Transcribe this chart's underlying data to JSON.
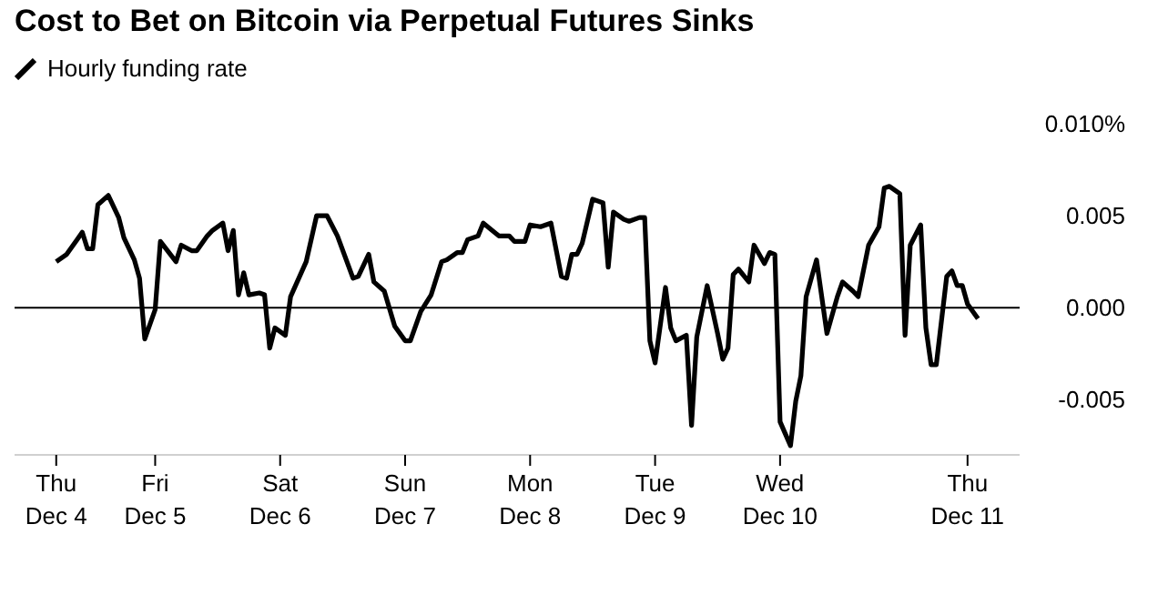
{
  "chart_data": {
    "type": "line",
    "title": "Cost to Bet on Bitcoin via Perpetual Futures Sinks",
    "x": [
      "--12-04T05:00",
      "--12-04T07:00",
      "--12-04T09:00",
      "--12-04T10:00",
      "--12-04T11:00",
      "--12-04T12:00",
      "--12-04T13:00",
      "--12-04T15:00",
      "--12-04T17:00",
      "--12-04T18:00",
      "--12-04T20:00",
      "--12-04T21:00",
      "--12-04T22:00",
      "--12-05T00:00",
      "--12-05T01:00",
      "--12-05T04:00",
      "--12-05T05:00",
      "--12-05T07:00",
      "--12-05T08:00",
      "--12-05T10:00",
      "--12-05T11:00",
      "--12-05T13:00",
      "--12-05T14:00",
      "--12-05T15:00",
      "--12-05T16:00",
      "--12-05T17:00",
      "--12-05T18:00",
      "--12-05T20:00",
      "--12-05T21:00",
      "--12-05T22:00",
      "--12-05T23:00",
      "--12-06T01:00",
      "--12-06T02:00",
      "--12-06T05:00",
      "--12-06T07:00",
      "--12-06T09:00",
      "--12-06T11:00",
      "--12-06T14:00",
      "--12-06T15:00",
      "--12-06T17:00",
      "--12-06T18:00",
      "--12-06T20:00",
      "--12-06T22:00",
      "--12-07T00:00",
      "--12-07T01:00",
      "--12-07T03:00",
      "--12-07T05:00",
      "--12-07T07:00",
      "--12-07T08:00",
      "--12-07T10:00",
      "--12-07T11:00",
      "--12-07T12:00",
      "--12-07T14:00",
      "--12-07T15:00",
      "--12-07T18:00",
      "--12-07T20:00",
      "--12-07T21:00",
      "--12-07T23:00",
      "--12-08T00:00",
      "--12-08T02:00",
      "--12-08T04:00",
      "--12-08T06:00",
      "--12-08T07:00",
      "--12-08T08:00",
      "--12-08T09:00",
      "--12-08T10:00",
      "--12-08T12:00",
      "--12-08T14:00",
      "--12-08T15:00",
      "--12-08T16:00",
      "--12-08T18:00",
      "--12-08T19:00",
      "--12-08T21:00",
      "--12-08T22:00",
      "--12-08T23:00",
      "--12-09T00:00",
      "--12-09T02:00",
      "--12-09T03:00",
      "--12-09T04:00",
      "--12-09T06:00",
      "--12-09T07:00",
      "--12-09T08:00",
      "--12-09T10:00",
      "--12-09T12:00",
      "--12-09T13:00",
      "--12-09T14:00",
      "--12-09T15:00",
      "--12-09T16:00",
      "--12-09T18:00",
      "--12-09T19:00",
      "--12-09T21:00",
      "--12-09T22:00",
      "--12-09T23:00",
      "--12-10T00:00",
      "--12-10T02:00",
      "--12-10T03:00",
      "--12-10T04:00",
      "--12-10T05:00",
      "--12-10T07:00",
      "--12-10T09:00",
      "--12-10T11:00",
      "--12-10T12:00",
      "--12-10T14:00",
      "--12-10T15:00",
      "--12-10T17:00",
      "--12-10T19:00",
      "--12-10T20:00",
      "--12-10T21:00",
      "--12-10T23:00",
      "--12-11T00:00",
      "--12-11T01:00",
      "--12-11T03:00",
      "--12-11T04:00",
      "--12-11T05:00",
      "--12-11T06:00",
      "--12-11T08:00",
      "--12-11T09:00",
      "--12-11T10:00",
      "--12-11T11:00",
      "--12-11T12:00",
      "--12-11T14:00"
    ],
    "series": [
      {
        "name": "Hourly funding rate",
        "color": "#000000",
        "values": [
          0.0025,
          0.0029,
          0.0037,
          0.0041,
          0.0032,
          0.0032,
          0.0056,
          0.0061,
          0.0049,
          0.0038,
          0.0026,
          0.0016,
          -0.0017,
          -0.0001,
          0.0036,
          0.0025,
          0.0034,
          0.0031,
          0.0031,
          0.0039,
          0.0042,
          0.0046,
          0.0031,
          0.0042,
          0.0007,
          0.0019,
          0.0007,
          0.0008,
          0.0007,
          -0.0022,
          -0.0011,
          -0.0015,
          0.0006,
          0.0025,
          0.005,
          0.005,
          0.0039,
          0.0016,
          0.0017,
          0.0029,
          0.0014,
          0.0009,
          -0.001,
          -0.0018,
          -0.0018,
          -0.0002,
          0.0007,
          0.0025,
          0.0026,
          0.003,
          0.003,
          0.0037,
          0.0039,
          0.0046,
          0.0039,
          0.0039,
          0.0036,
          0.0036,
          0.0045,
          0.0044,
          0.0046,
          0.0017,
          0.0016,
          0.0029,
          0.0029,
          0.0035,
          0.0059,
          0.0057,
          0.0022,
          0.0052,
          0.0048,
          0.0047,
          0.0049,
          0.0049,
          -0.0018,
          -0.003,
          0.0011,
          -0.0011,
          -0.0018,
          -0.0015,
          -0.0064,
          -0.0016,
          0.0012,
          -0.0014,
          -0.0028,
          -0.0022,
          0.0018,
          0.0021,
          0.0014,
          0.0034,
          0.0024,
          0.003,
          0.0029,
          -0.0062,
          -0.0075,
          -0.0051,
          -0.0037,
          0.0006,
          0.0026,
          -0.0014,
          0.0006,
          0.0014,
          0.0009,
          0.0006,
          0.0034,
          0.0044,
          0.0065,
          0.0066,
          0.0062,
          -0.0015,
          0.0034,
          0.0045,
          -0.0011,
          -0.0031,
          -0.0031,
          0.0017,
          0.002,
          0.0012,
          0.0012,
          0.0002,
          -0.0006
        ]
      }
    ],
    "xlim": [
      "--12-03T21:00",
      "--12-11T22:00"
    ],
    "xticks": [
      {
        "value": "--12-04T05:00",
        "label": "Thu\nDec 4"
      },
      {
        "value": "--12-05T00:00",
        "label": "Fri\nDec 5"
      },
      {
        "value": "--12-06T00:00",
        "label": "Sat\nDec 6"
      },
      {
        "value": "--12-07T00:00",
        "label": "Sun\nDec 7"
      },
      {
        "value": "--12-08T00:00",
        "label": "Mon\nDec 8"
      },
      {
        "value": "--12-09T00:00",
        "label": "Tue\nDec 9"
      },
      {
        "value": "--12-10T00:00",
        "label": "Wed\nDec 10"
      },
      {
        "value": "--12-11T12:00",
        "label": "Thu\nDec 11"
      }
    ],
    "ylim": [
      -0.008,
      0.01
    ],
    "yticks": [
      {
        "value": 0.01,
        "label": "0.010%"
      },
      0.005,
      {
        "value": 0,
        "label": "0.000"
      },
      -0.005
    ],
    "ref_lines": [
      {
        "axis": "y",
        "value": 0,
        "color": "#000000"
      }
    ],
    "grid": false,
    "legend": "top left",
    "marker": "none",
    "line_style": "solid"
  }
}
